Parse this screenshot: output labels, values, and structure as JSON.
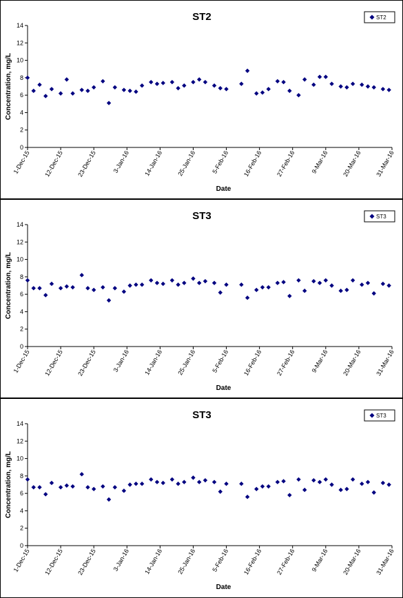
{
  "x_ticks": [
    "1-Dec-15",
    "12-Dec-15",
    "23-Dec-15",
    "3-Jan-16",
    "14-Jan-16",
    "25-Jan-16",
    "5-Feb-16",
    "16-Feb-16",
    "27-Feb-16",
    "9-Mar-16",
    "20-Mar-16",
    "31-Mar-16"
  ],
  "chart_data": [
    {
      "type": "scatter",
      "title": "ST2",
      "xlabel": "Date",
      "ylabel": "Concentration, mg/L",
      "xlim": [
        "2015-12-01",
        "2016-03-31"
      ],
      "ylim": [
        0,
        14
      ],
      "y_ticks": [
        0,
        2,
        4,
        6,
        8,
        10,
        12,
        14
      ],
      "legend_position": "top-right",
      "grid": false,
      "marker_color": "#000080",
      "series": [
        {
          "name": "ST2",
          "x": [
            "2015-12-01",
            "2015-12-03",
            "2015-12-05",
            "2015-12-07",
            "2015-12-09",
            "2015-12-12",
            "2015-12-14",
            "2015-12-16",
            "2015-12-19",
            "2015-12-21",
            "2015-12-23",
            "2015-12-26",
            "2015-12-28",
            "2015-12-30",
            "2016-01-02",
            "2016-01-04",
            "2016-01-06",
            "2016-01-08",
            "2016-01-11",
            "2016-01-13",
            "2016-01-15",
            "2016-01-18",
            "2016-01-20",
            "2016-01-22",
            "2016-01-25",
            "2016-01-27",
            "2016-01-29",
            "2016-02-01",
            "2016-02-03",
            "2016-02-05",
            "2016-02-10",
            "2016-02-12",
            "2016-02-15",
            "2016-02-17",
            "2016-02-19",
            "2016-02-22",
            "2016-02-24",
            "2016-02-26",
            "2016-02-29",
            "2016-03-02",
            "2016-03-05",
            "2016-03-07",
            "2016-03-09",
            "2016-03-11",
            "2016-03-14",
            "2016-03-16",
            "2016-03-18",
            "2016-03-21",
            "2016-03-23",
            "2016-03-25",
            "2016-03-28",
            "2016-03-30"
          ],
          "y": [
            8.0,
            6.5,
            7.2,
            5.9,
            6.7,
            6.2,
            7.8,
            6.2,
            6.6,
            6.5,
            6.9,
            7.6,
            5.1,
            6.9,
            6.6,
            6.5,
            6.4,
            7.1,
            7.5,
            7.3,
            7.4,
            7.5,
            6.8,
            7.1,
            7.5,
            7.8,
            7.5,
            7.1,
            6.8,
            6.7,
            7.3,
            8.8,
            6.2,
            6.3,
            6.7,
            7.6,
            7.5,
            6.5,
            6.0,
            7.8,
            7.2,
            8.1,
            8.1,
            7.3,
            7.0,
            6.9,
            7.3,
            7.2,
            7.0,
            6.9,
            6.7,
            6.6
          ]
        }
      ]
    },
    {
      "type": "scatter",
      "title": "ST3",
      "xlabel": "Date",
      "ylabel": "Concentration, mg/L",
      "xlim": [
        "2015-12-01",
        "2016-03-31"
      ],
      "ylim": [
        0,
        14
      ],
      "y_ticks": [
        0,
        2,
        4,
        6,
        8,
        10,
        12,
        14
      ],
      "legend_position": "top-right",
      "grid": false,
      "marker_color": "#000080",
      "series": [
        {
          "name": "ST3",
          "x": [
            "2015-12-01",
            "2015-12-03",
            "2015-12-05",
            "2015-12-07",
            "2015-12-09",
            "2015-12-12",
            "2015-12-14",
            "2015-12-16",
            "2015-12-19",
            "2015-12-21",
            "2015-12-23",
            "2015-12-26",
            "2015-12-28",
            "2015-12-30",
            "2016-01-02",
            "2016-01-04",
            "2016-01-06",
            "2016-01-08",
            "2016-01-11",
            "2016-01-13",
            "2016-01-15",
            "2016-01-18",
            "2016-01-20",
            "2016-01-22",
            "2016-01-25",
            "2016-01-27",
            "2016-01-29",
            "2016-02-01",
            "2016-02-03",
            "2016-02-05",
            "2016-02-10",
            "2016-02-12",
            "2016-02-15",
            "2016-02-17",
            "2016-02-19",
            "2016-02-22",
            "2016-02-24",
            "2016-02-26",
            "2016-02-29",
            "2016-03-02",
            "2016-03-05",
            "2016-03-07",
            "2016-03-09",
            "2016-03-11",
            "2016-03-14",
            "2016-03-16",
            "2016-03-18",
            "2016-03-21",
            "2016-03-23",
            "2016-03-25",
            "2016-03-28",
            "2016-03-30"
          ],
          "y": [
            7.6,
            6.7,
            6.7,
            5.9,
            7.2,
            6.7,
            6.9,
            6.8,
            8.2,
            6.7,
            6.5,
            6.8,
            5.3,
            6.7,
            6.3,
            7.0,
            7.1,
            7.1,
            7.6,
            7.3,
            7.2,
            7.6,
            7.1,
            7.3,
            7.8,
            7.3,
            7.5,
            7.3,
            6.2,
            7.1,
            7.1,
            5.6,
            6.5,
            6.8,
            6.8,
            7.3,
            7.4,
            5.8,
            7.6,
            6.4,
            7.5,
            7.3,
            7.6,
            7.0,
            6.4,
            6.5,
            7.6,
            7.1,
            7.3,
            6.1,
            7.2,
            7.0
          ]
        }
      ]
    },
    {
      "type": "scatter",
      "title": "ST3",
      "xlabel": "Date",
      "ylabel": "Concentration, mg/L",
      "xlim": [
        "2015-12-01",
        "2016-03-31"
      ],
      "ylim": [
        0,
        14
      ],
      "y_ticks": [
        0,
        2,
        4,
        6,
        8,
        10,
        12,
        14
      ],
      "legend_position": "top-right",
      "grid": false,
      "marker_color": "#000080",
      "series": [
        {
          "name": "ST3",
          "x": [
            "2015-12-01",
            "2015-12-03",
            "2015-12-05",
            "2015-12-07",
            "2015-12-09",
            "2015-12-12",
            "2015-12-14",
            "2015-12-16",
            "2015-12-19",
            "2015-12-21",
            "2015-12-23",
            "2015-12-26",
            "2015-12-28",
            "2015-12-30",
            "2016-01-02",
            "2016-01-04",
            "2016-01-06",
            "2016-01-08",
            "2016-01-11",
            "2016-01-13",
            "2016-01-15",
            "2016-01-18",
            "2016-01-20",
            "2016-01-22",
            "2016-01-25",
            "2016-01-27",
            "2016-01-29",
            "2016-02-01",
            "2016-02-03",
            "2016-02-05",
            "2016-02-10",
            "2016-02-12",
            "2016-02-15",
            "2016-02-17",
            "2016-02-19",
            "2016-02-22",
            "2016-02-24",
            "2016-02-26",
            "2016-02-29",
            "2016-03-02",
            "2016-03-05",
            "2016-03-07",
            "2016-03-09",
            "2016-03-11",
            "2016-03-14",
            "2016-03-16",
            "2016-03-18",
            "2016-03-21",
            "2016-03-23",
            "2016-03-25",
            "2016-03-28",
            "2016-03-30"
          ],
          "y": [
            7.6,
            6.7,
            6.7,
            5.9,
            7.2,
            6.7,
            6.9,
            6.8,
            8.2,
            6.7,
            6.5,
            6.8,
            5.3,
            6.7,
            6.3,
            7.0,
            7.1,
            7.1,
            7.6,
            7.3,
            7.2,
            7.6,
            7.1,
            7.3,
            7.8,
            7.3,
            7.5,
            7.3,
            6.2,
            7.1,
            7.1,
            5.6,
            6.5,
            6.8,
            6.8,
            7.3,
            7.4,
            5.8,
            7.6,
            6.4,
            7.5,
            7.3,
            7.6,
            7.0,
            6.4,
            6.5,
            7.6,
            7.1,
            7.3,
            6.1,
            7.2,
            7.0
          ]
        }
      ]
    }
  ]
}
